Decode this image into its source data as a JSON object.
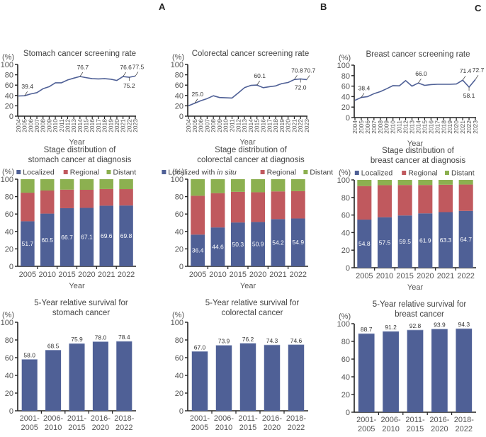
{
  "colors": {
    "localized": "#4F6096",
    "regional": "#C0595E",
    "distant": "#8CB050",
    "line": "#4F6096",
    "axis": "#222222"
  },
  "panel_letters": [
    "A",
    "B",
    "C"
  ],
  "chart_data": [
    {
      "id": "stomach-screening",
      "type": "line",
      "title": "Stomach cancer screening rate",
      "ylabel": "(%)",
      "xlabel": "Year",
      "ylim": [
        0,
        100
      ],
      "yticks": [
        0,
        20,
        40,
        60,
        80,
        100
      ],
      "x": [
        "2004",
        "2005",
        "2006",
        "2007",
        "2008",
        "2009",
        "2010",
        "2011",
        "2012",
        "2013",
        "2014",
        "2015",
        "2016",
        "2017",
        "2018",
        "2019",
        "2020",
        "2021",
        "2022",
        "2023"
      ],
      "values": [
        39.0,
        39.4,
        43.0,
        45.5,
        53.0,
        57.0,
        64.5,
        64.5,
        70.0,
        73.5,
        76.7,
        74.5,
        72.5,
        72.0,
        72.5,
        71.5,
        69.0,
        76.6,
        75.2,
        77.5
      ],
      "annotations": [
        {
          "year": "2005",
          "label": "39.4",
          "pos": "above"
        },
        {
          "year": "2014",
          "label": "76.7",
          "pos": "above"
        },
        {
          "year": "2021",
          "label": "76.6",
          "pos": "above"
        },
        {
          "year": "2022",
          "label": "75.2",
          "pos": "below"
        },
        {
          "year": "2023",
          "label": "77.5",
          "pos": "above"
        }
      ]
    },
    {
      "id": "colorectal-screening",
      "type": "line",
      "title": "Colorectal cancer screening rate",
      "ylabel": "(%)",
      "xlabel": "Year",
      "ylim": [
        0,
        100
      ],
      "yticks": [
        0,
        20,
        40,
        60,
        80,
        100
      ],
      "x": [
        "2004",
        "2005",
        "2006",
        "2007",
        "2008",
        "2009",
        "2010",
        "2011",
        "2012",
        "2013",
        "2014",
        "2015",
        "2016",
        "2017",
        "2018",
        "2019",
        "2020",
        "2021",
        "2022",
        "2023"
      ],
      "values": [
        20.0,
        25.0,
        30.0,
        34.0,
        39.5,
        36.0,
        35.5,
        35.0,
        45.0,
        55.0,
        59.5,
        60.1,
        55.0,
        57.0,
        58.5,
        63.0,
        65.0,
        70.8,
        72.0,
        70.7
      ],
      "annotations": [
        {
          "year": "2005",
          "label": "25.0",
          "pos": "above"
        },
        {
          "year": "2015",
          "label": "60.1",
          "pos": "above"
        },
        {
          "year": "2021",
          "label": "70.8",
          "pos": "above"
        },
        {
          "year": "2022",
          "label": "72.0",
          "pos": "below"
        },
        {
          "year": "2023",
          "label": "70.7",
          "pos": "above"
        }
      ]
    },
    {
      "id": "breast-screening",
      "type": "line",
      "title": "Breast cancer screening rate",
      "ylabel": "(%)",
      "xlabel": "Year",
      "ylim": [
        0,
        100
      ],
      "yticks": [
        0,
        20,
        40,
        60,
        80,
        100
      ],
      "x": [
        "2004",
        "2005",
        "2006",
        "2007",
        "2008",
        "2009",
        "2010",
        "2011",
        "2012",
        "2013",
        "2014",
        "2015",
        "2016",
        "2017",
        "2018",
        "2019",
        "2020",
        "2021",
        "2022",
        "2023"
      ],
      "values": [
        33.0,
        38.4,
        40.0,
        45.5,
        49.5,
        55.0,
        61.0,
        60.5,
        70.5,
        60.0,
        66.0,
        61.5,
        63.0,
        63.5,
        63.5,
        63.5,
        64.0,
        71.4,
        58.1,
        72.7
      ],
      "annotations": [
        {
          "year": "2005",
          "label": "38.4",
          "pos": "above"
        },
        {
          "year": "2014",
          "label": "66.0",
          "pos": "above"
        },
        {
          "year": "2021",
          "label": "71.4",
          "pos": "above"
        },
        {
          "year": "2022",
          "label": "58.1",
          "pos": "below"
        },
        {
          "year": "2023",
          "label": "72.7",
          "pos": "above"
        }
      ]
    },
    {
      "id": "stomach-stage",
      "type": "bar",
      "stacked": true,
      "title": [
        "Stage distribution of",
        "stomach cancer at diagnosis"
      ],
      "ylabel": "(%)",
      "xlabel": "Year",
      "ylim": [
        0,
        100
      ],
      "yticks": [
        0,
        20,
        40,
        60,
        80,
        100
      ],
      "legend": [
        "Localized",
        "Regional",
        "Distant"
      ],
      "legend_position": "top",
      "categories": [
        "2005",
        "2010",
        "2015",
        "2020",
        "2021",
        "2022"
      ],
      "series": [
        {
          "name": "Localized",
          "values": [
            51.7,
            60.5,
            66.7,
            67.1,
            69.6,
            69.8
          ]
        },
        {
          "name": "Regional",
          "values": [
            32.8,
            26.5,
            21.3,
            20.7,
            19.1,
            18.8
          ]
        },
        {
          "name": "Distant",
          "values": [
            15.5,
            13.0,
            12.0,
            12.2,
            11.3,
            11.4
          ]
        }
      ],
      "data_labels": [
        "51.7",
        "60.5",
        "66.7",
        "67.1",
        "69.6",
        "69.8"
      ]
    },
    {
      "id": "colorectal-stage",
      "type": "bar",
      "stacked": true,
      "title": [
        "Stage distribution of",
        "colorectal cancer at diagnosis"
      ],
      "ylabel": "(%)",
      "xlabel": "Year",
      "ylim": [
        0,
        100
      ],
      "yticks": [
        0,
        20,
        40,
        60,
        80,
        100
      ],
      "legend": [
        "Localized with in situ",
        "Regional",
        "Distant"
      ],
      "legend_position": "top",
      "categories": [
        "2005",
        "2010",
        "2015",
        "2020",
        "2021",
        "2022"
      ],
      "series": [
        {
          "name": "Localized with in situ",
          "values": [
            36.4,
            44.6,
            50.3,
            50.9,
            54.2,
            54.9
          ]
        },
        {
          "name": "Regional",
          "values": [
            44.6,
            39.4,
            35.2,
            34.1,
            31.8,
            31.4
          ]
        },
        {
          "name": "Distant",
          "values": [
            19.0,
            16.0,
            14.5,
            15.0,
            14.0,
            13.7
          ]
        }
      ],
      "data_labels": [
        "36.4",
        "44.6",
        "50.3",
        "50.9",
        "54.2",
        "54.9"
      ]
    },
    {
      "id": "breast-stage",
      "type": "bar",
      "stacked": true,
      "title": [
        "Stage distribution of",
        "breast cancer at diagnosis"
      ],
      "ylabel": "(%)",
      "xlabel": "Year",
      "ylim": [
        0,
        100
      ],
      "yticks": [
        0,
        20,
        40,
        60,
        80,
        100
      ],
      "legend": [
        "Localized",
        "Regional",
        "Distant"
      ],
      "legend_position": "top",
      "categories": [
        "2005",
        "2010",
        "2015",
        "2020",
        "2021",
        "2022"
      ],
      "series": [
        {
          "name": "Localized",
          "values": [
            54.8,
            57.5,
            59.5,
            61.9,
            63.3,
            64.7
          ]
        },
        {
          "name": "Regional",
          "values": [
            38.2,
            36.5,
            34.7,
            32.3,
            31.2,
            30.0
          ]
        },
        {
          "name": "Distant",
          "values": [
            7.0,
            6.0,
            5.8,
            5.8,
            5.5,
            5.3
          ]
        }
      ],
      "data_labels": [
        "54.8",
        "57.5",
        "59.5",
        "61.9",
        "63.3",
        "64.7"
      ]
    },
    {
      "id": "stomach-survival",
      "type": "bar",
      "title": [
        "5-Year relative survival for",
        "stomach cancer"
      ],
      "ylabel": "(%)",
      "xlabel": "",
      "ylim": [
        0,
        100
      ],
      "yticks": [
        0,
        20,
        40,
        60,
        80,
        100
      ],
      "categories": [
        [
          "2001-",
          "2005"
        ],
        [
          "2006-",
          "2010"
        ],
        [
          "2011-",
          "2015"
        ],
        [
          "2016-",
          "2020"
        ],
        [
          "2018-",
          "2022"
        ]
      ],
      "values": [
        58.0,
        68.5,
        75.9,
        78.0,
        78.4
      ],
      "data_labels": [
        "58.0",
        "68.5",
        "75.9",
        "78.0",
        "78.4"
      ]
    },
    {
      "id": "colorectal-survival",
      "type": "bar",
      "title": [
        "5-Year relative survival for",
        "colorectal cancer"
      ],
      "ylabel": "(%)",
      "xlabel": "",
      "ylim": [
        0,
        100
      ],
      "yticks": [
        0,
        20,
        40,
        60,
        80,
        100
      ],
      "categories": [
        [
          "2001-",
          "2005"
        ],
        [
          "2006-",
          "2010"
        ],
        [
          "2011-",
          "2015"
        ],
        [
          "2016-",
          "2020"
        ],
        [
          "2018-",
          "2022"
        ]
      ],
      "values": [
        67.0,
        73.9,
        76.2,
        74.3,
        74.6
      ],
      "data_labels": [
        "67.0",
        "73.9",
        "76.2",
        "74.3",
        "74.6"
      ]
    },
    {
      "id": "breast-survival",
      "type": "bar",
      "title": [
        "5-Year relative survival for",
        "breast cancer"
      ],
      "ylabel": "(%)",
      "xlabel": "",
      "ylim": [
        0,
        100
      ],
      "yticks": [
        0,
        20,
        40,
        60,
        80,
        100
      ],
      "categories": [
        [
          "2001-",
          "2005"
        ],
        [
          "2006-",
          "2010"
        ],
        [
          "2011-",
          "2015"
        ],
        [
          "2016-",
          "2020"
        ],
        [
          "2018-",
          "2022"
        ]
      ],
      "values": [
        88.7,
        91.2,
        92.8,
        93.9,
        94.3
      ],
      "data_labels": [
        "88.7",
        "91.2",
        "92.8",
        "93.9",
        "94.3"
      ]
    }
  ]
}
